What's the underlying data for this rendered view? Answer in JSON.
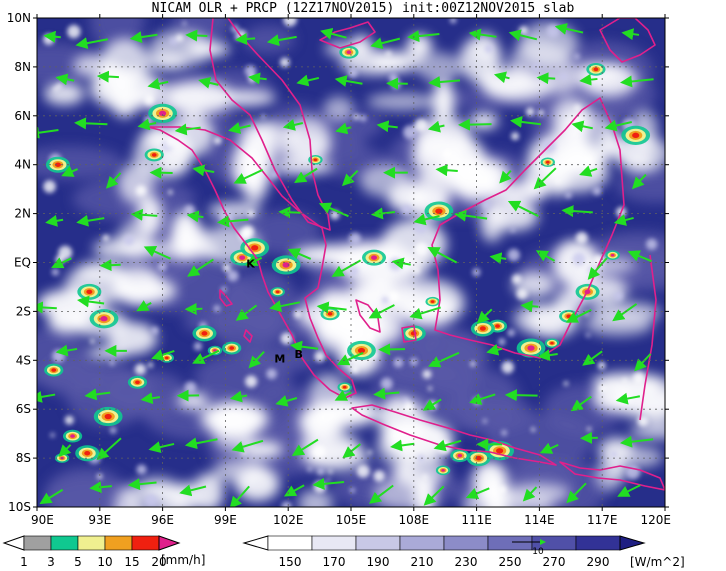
{
  "title": "NICAM OLR + PRCP (12Z17NOV2015) init:00Z12NOV2015 slab",
  "map": {
    "lat_labels": [
      "10N",
      "8N",
      "6N",
      "4N",
      "2N",
      "EQ",
      "2S",
      "4S",
      "6S",
      "8S",
      "10S"
    ],
    "lon_labels": [
      "90E",
      "93E",
      "96E",
      "99E",
      "102E",
      "105E",
      "108E",
      "111E",
      "114E",
      "117E",
      "120E"
    ],
    "lat_range": [
      -10,
      10
    ],
    "lon_range": [
      90,
      120
    ],
    "annotations": [
      {
        "text": "K",
        "lon": 100.2,
        "lat": -0.2
      },
      {
        "text": "M",
        "lon": 101.6,
        "lat": -4.1
      },
      {
        "text": "B",
        "lon": 102.5,
        "lat": -3.9
      }
    ],
    "colors": {
      "ocean_deep": "#1a237e",
      "cloud_white": "#ffffff",
      "coastline": "#e0208c",
      "wind_arrow": "#22dd22"
    }
  },
  "precip_colorbar": {
    "labels": [
      "1",
      "3",
      "5",
      "10",
      "15",
      "20"
    ],
    "unit": "[mm/h]",
    "colors": [
      "#ffffff",
      "#a0a0a0",
      "#10c890",
      "#f0f090",
      "#f0a020",
      "#f02010",
      "#e0208c"
    ]
  },
  "olr_colorbar": {
    "labels": [
      "150",
      "170",
      "190",
      "210",
      "230",
      "250",
      "270",
      "290"
    ],
    "unit": "[W/m^2]",
    "vector_label": "10",
    "colors": [
      "#ffffff",
      "#e8e8f4",
      "#c8c8e6",
      "#aaaad8",
      "#8c8cc8",
      "#6e6eb8",
      "#5050a8",
      "#323296",
      "#1e1e82"
    ]
  }
}
